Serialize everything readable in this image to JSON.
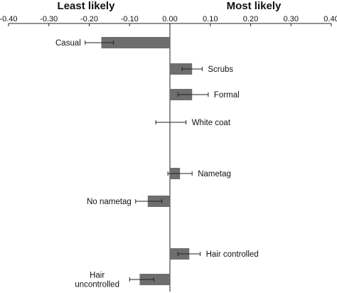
{
  "colors": {
    "bar_fill": "#6e6e6e",
    "axis": "#222222",
    "error_bar": "#222222",
    "background": "#ffffff"
  },
  "chart_data": {
    "type": "bar",
    "orientation": "horizontal",
    "side_headings": {
      "left": "Least likely",
      "right": "Most likely"
    },
    "x_axis": {
      "position": "top",
      "range": [
        -0.4,
        0.4
      ],
      "ticks": [
        -0.4,
        -0.3,
        -0.2,
        -0.1,
        0.0,
        0.1,
        0.2,
        0.3,
        0.4
      ],
      "tick_labels": [
        "-0.40",
        "-0.30",
        "-0.20",
        "-0.10",
        "0.00",
        "0.10",
        "0.20",
        "0.30",
        "0.40"
      ]
    },
    "gridlines": false,
    "bars": [
      {
        "label": [
          "Casual"
        ],
        "value": -0.17,
        "err_low": -0.21,
        "err_high": -0.14,
        "label_side": "left"
      },
      {
        "label": [
          "Scrubs"
        ],
        "value": 0.055,
        "err_low": 0.03,
        "err_high": 0.08,
        "label_side": "right"
      },
      {
        "label": [
          "Formal"
        ],
        "value": 0.055,
        "err_low": 0.02,
        "err_high": 0.095,
        "label_side": "right"
      },
      {
        "label": [
          "White coat"
        ],
        "value": 0.0,
        "err_low": -0.035,
        "err_high": 0.04,
        "label_side": "right"
      },
      {
        "label": [
          "Nametag"
        ],
        "value": 0.025,
        "err_low": -0.005,
        "err_high": 0.055,
        "label_side": "right"
      },
      {
        "label": [
          "No nametag"
        ],
        "value": -0.055,
        "err_low": -0.085,
        "err_high": -0.02,
        "label_side": "left"
      },
      {
        "label": [
          "Hair controlled"
        ],
        "value": 0.048,
        "err_low": 0.02,
        "err_high": 0.075,
        "label_side": "right"
      },
      {
        "label": [
          "Hair",
          "uncontrolled"
        ],
        "value": -0.075,
        "err_low": -0.1,
        "err_high": -0.04,
        "label_side": "left"
      }
    ]
  }
}
